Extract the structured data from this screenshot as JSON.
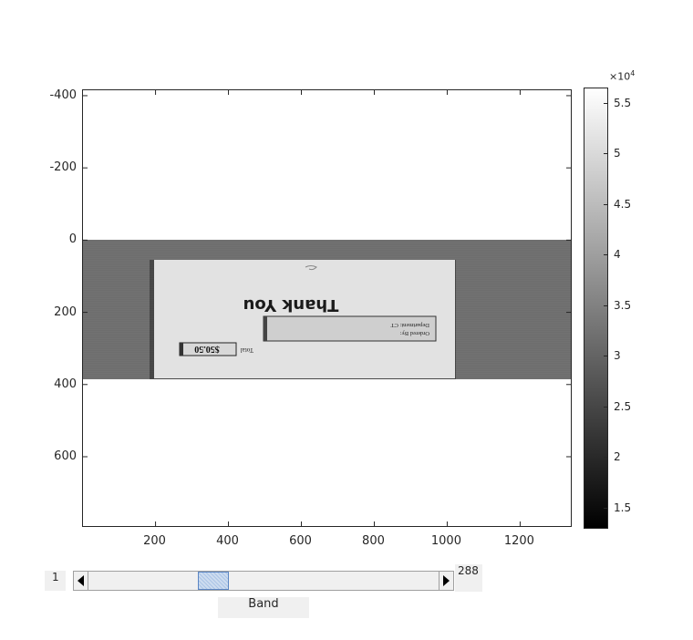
{
  "axes": {
    "xlim": [
      1,
      1344
    ],
    "ylim": [
      -415,
      797
    ],
    "y_ticks": [
      "-400",
      "-200",
      "0",
      "200",
      "400",
      "600"
    ],
    "x_ticks": [
      "200",
      "400",
      "600",
      "800",
      "1000",
      "1200"
    ],
    "y_tick_values": [
      -400,
      -200,
      0,
      200,
      400,
      600
    ],
    "x_tick_values": [
      200,
      400,
      600,
      800,
      1000,
      1200
    ],
    "image_extent_y": [
      0,
      384
    ],
    "image_extent_x": [
      1,
      1344
    ]
  },
  "image_content": {
    "heading": "Thank You",
    "ordered_by": "Ordered By:",
    "department": "Department: CT",
    "total_label": "Total",
    "total_value": "$50.50",
    "orientation": "upside-down"
  },
  "colorbar": {
    "exponent_prefix": "×10",
    "exponent_power": "4",
    "labels": [
      "5.5",
      "5",
      "4.5",
      "4",
      "3.5",
      "3",
      "2.5",
      "2",
      "1.5"
    ],
    "values": [
      5.5,
      5,
      4.5,
      4,
      3.5,
      3,
      2.5,
      2,
      1.5
    ],
    "clim": [
      1.29,
      5.65
    ],
    "colormap": "gray"
  },
  "slider": {
    "min_label": "1",
    "max_label": "288",
    "band_label": "Band",
    "current_band": 61
  },
  "colors": {
    "axis": "#262626",
    "slider_bg": "#f0f0f0",
    "thumb": "#cddcef",
    "thumb_border": "#5b86c4"
  }
}
